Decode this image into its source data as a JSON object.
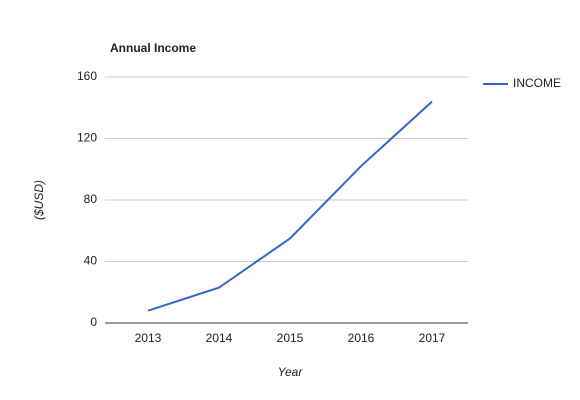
{
  "chart_data": {
    "type": "line",
    "title": "Annual Income",
    "x_label": "Year",
    "y_label": "($USD)",
    "categories": [
      "2013",
      "2014",
      "2015",
      "2016",
      "2017"
    ],
    "series": [
      {
        "name": "INCOME",
        "color": "#3366cc",
        "values": [
          8,
          23,
          55,
          102,
          144
        ]
      }
    ],
    "ylim": [
      0,
      160
    ],
    "yticks": [
      0,
      40,
      80,
      120,
      160
    ],
    "grid": true,
    "legend": "right"
  }
}
